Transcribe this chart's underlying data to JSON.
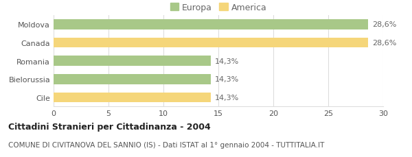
{
  "categories": [
    "Cile",
    "Bielorussia",
    "Romania",
    "Canada",
    "Moldova"
  ],
  "values": [
    14.3,
    14.3,
    14.3,
    28.6,
    28.6
  ],
  "colors": [
    "#f5d67a",
    "#a8c888",
    "#a8c888",
    "#f5d67a",
    "#a8c888"
  ],
  "bar_labels": [
    "14,3%",
    "14,3%",
    "14,3%",
    "28,6%",
    "28,6%"
  ],
  "legend_labels": [
    "Europa",
    "America"
  ],
  "legend_colors": [
    "#a8c888",
    "#f5d67a"
  ],
  "title": "Cittadini Stranieri per Cittadinanza - 2004",
  "subtitle": "COMUNE DI CIVITANOVA DEL SANNIO (IS) - Dati ISTAT al 1° gennaio 2004 - TUTTITALIA.IT",
  "xlim": [
    0,
    30
  ],
  "xticks": [
    0,
    5,
    10,
    15,
    20,
    25,
    30
  ],
  "title_fontsize": 9,
  "subtitle_fontsize": 7.5,
  "label_fontsize": 8,
  "tick_fontsize": 8,
  "legend_fontsize": 9,
  "bar_height": 0.55,
  "background_color": "#ffffff",
  "grid_color": "#dddddd"
}
